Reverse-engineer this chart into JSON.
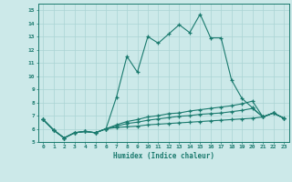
{
  "xlabel": "Humidex (Indice chaleur)",
  "bg_color": "#cce9e9",
  "grid_color": "#aad4d4",
  "line_color": "#1a7a6e",
  "xlim": [
    -0.5,
    23.5
  ],
  "ylim": [
    5,
    15.5
  ],
  "yticks": [
    5,
    6,
    7,
    8,
    9,
    10,
    11,
    12,
    13,
    14,
    15
  ],
  "xticks": [
    0,
    1,
    2,
    3,
    4,
    5,
    6,
    7,
    8,
    9,
    10,
    11,
    12,
    13,
    14,
    15,
    16,
    17,
    18,
    19,
    20,
    21,
    22,
    23
  ],
  "series": [
    [
      6.7,
      5.9,
      5.3,
      5.7,
      5.8,
      5.7,
      6.0,
      8.4,
      11.5,
      10.3,
      13.0,
      12.5,
      13.2,
      13.9,
      13.3,
      14.7,
      12.9,
      12.9,
      9.7,
      8.3,
      7.6,
      6.9,
      7.2,
      6.8
    ],
    [
      6.7,
      5.9,
      5.3,
      5.7,
      5.8,
      5.7,
      6.0,
      6.1,
      6.15,
      6.2,
      6.3,
      6.35,
      6.4,
      6.45,
      6.5,
      6.55,
      6.6,
      6.65,
      6.7,
      6.75,
      6.8,
      6.9,
      7.2,
      6.8
    ],
    [
      6.7,
      5.9,
      5.3,
      5.7,
      5.8,
      5.7,
      6.0,
      6.2,
      6.4,
      6.5,
      6.65,
      6.75,
      6.85,
      6.95,
      7.0,
      7.1,
      7.15,
      7.2,
      7.3,
      7.4,
      7.55,
      6.9,
      7.2,
      6.8
    ],
    [
      6.7,
      5.9,
      5.3,
      5.7,
      5.8,
      5.7,
      6.0,
      6.3,
      6.55,
      6.7,
      6.9,
      7.0,
      7.15,
      7.2,
      7.35,
      7.45,
      7.55,
      7.65,
      7.75,
      7.9,
      8.1,
      6.9,
      7.2,
      6.8
    ]
  ]
}
